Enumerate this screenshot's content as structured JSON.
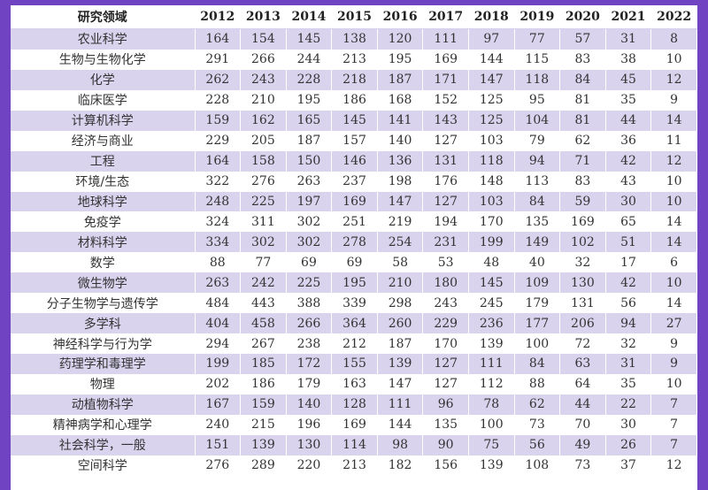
{
  "table": {
    "header": [
      "研究领域",
      "2012",
      "2013",
      "2014",
      "2015",
      "2016",
      "2017",
      "2018",
      "2019",
      "2020",
      "2021",
      "2022"
    ],
    "rows": [
      [
        "农业科学",
        "164",
        "154",
        "145",
        "138",
        "120",
        "111",
        "97",
        "77",
        "57",
        "31",
        "8"
      ],
      [
        "生物与生物化学",
        "291",
        "266",
        "244",
        "213",
        "195",
        "169",
        "144",
        "115",
        "83",
        "38",
        "10"
      ],
      [
        "化学",
        "262",
        "243",
        "228",
        "218",
        "187",
        "171",
        "147",
        "118",
        "84",
        "45",
        "12"
      ],
      [
        "临床医学",
        "228",
        "210",
        "195",
        "186",
        "168",
        "152",
        "125",
        "95",
        "81",
        "35",
        "9"
      ],
      [
        "计算机科学",
        "159",
        "162",
        "165",
        "145",
        "141",
        "143",
        "125",
        "104",
        "81",
        "44",
        "14"
      ],
      [
        "经济与商业",
        "229",
        "205",
        "187",
        "157",
        "140",
        "127",
        "103",
        "79",
        "62",
        "36",
        "11"
      ],
      [
        "工程",
        "164",
        "158",
        "150",
        "146",
        "136",
        "131",
        "118",
        "94",
        "71",
        "42",
        "12"
      ],
      [
        "环境/生态",
        "322",
        "276",
        "263",
        "237",
        "198",
        "176",
        "148",
        "113",
        "83",
        "43",
        "10"
      ],
      [
        "地球科学",
        "248",
        "225",
        "197",
        "169",
        "147",
        "127",
        "103",
        "84",
        "59",
        "30",
        "10"
      ],
      [
        "免疫学",
        "324",
        "311",
        "302",
        "251",
        "219",
        "194",
        "170",
        "135",
        "169",
        "65",
        "14"
      ],
      [
        "材料科学",
        "334",
        "302",
        "302",
        "278",
        "254",
        "231",
        "199",
        "149",
        "102",
        "51",
        "14"
      ],
      [
        "数学",
        "88",
        "77",
        "69",
        "69",
        "58",
        "53",
        "48",
        "40",
        "32",
        "17",
        "6"
      ],
      [
        "微生物学",
        "263",
        "242",
        "225",
        "195",
        "210",
        "180",
        "145",
        "109",
        "130",
        "42",
        "10"
      ],
      [
        "分子生物学与遗传学",
        "484",
        "443",
        "388",
        "339",
        "298",
        "243",
        "245",
        "179",
        "131",
        "56",
        "14"
      ],
      [
        "多学科",
        "404",
        "458",
        "266",
        "364",
        "260",
        "229",
        "236",
        "177",
        "206",
        "94",
        "27"
      ],
      [
        "神经科学与行为学",
        "294",
        "267",
        "238",
        "212",
        "187",
        "170",
        "139",
        "100",
        "72",
        "32",
        "9"
      ],
      [
        "药理学和毒理学",
        "199",
        "185",
        "172",
        "155",
        "139",
        "127",
        "111",
        "84",
        "63",
        "31",
        "9"
      ],
      [
        "物理",
        "202",
        "186",
        "179",
        "163",
        "147",
        "127",
        "112",
        "88",
        "64",
        "35",
        "10"
      ],
      [
        "动植物科学",
        "167",
        "159",
        "140",
        "128",
        "111",
        "96",
        "78",
        "62",
        "44",
        "22",
        "7"
      ],
      [
        "精神病学和心理学",
        "240",
        "215",
        "196",
        "169",
        "144",
        "135",
        "100",
        "73",
        "70",
        "30",
        "7"
      ],
      [
        "社会科学，一般",
        "151",
        "139",
        "130",
        "114",
        "98",
        "90",
        "75",
        "56",
        "49",
        "26",
        "7"
      ],
      [
        "空间科学",
        "276",
        "289",
        "220",
        "213",
        "182",
        "156",
        "139",
        "108",
        "73",
        "37",
        "12"
      ]
    ]
  }
}
